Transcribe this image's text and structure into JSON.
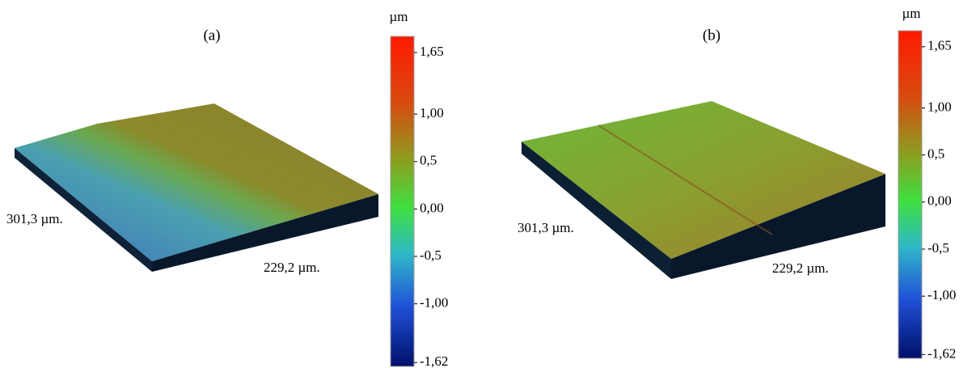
{
  "panels": [
    {
      "label": "(a)",
      "unit": "µm",
      "length_label": "301,3 µm.",
      "width_label": "229,2 µm.",
      "colorbar": {
        "range": [
          -1.66,
          1.82
        ],
        "ticks": [
          {
            "value": 1.65,
            "label": "1,65"
          },
          {
            "value": 1.0,
            "label": "1,00"
          },
          {
            "value": 0.5,
            "label": "0,5"
          },
          {
            "value": 0.0,
            "label": "0,00"
          },
          {
            "value": -0.5,
            "label": "-0,5"
          },
          {
            "value": -1.0,
            "label": "-1,00"
          },
          {
            "value": -1.62,
            "label": "-1,62"
          }
        ]
      }
    },
    {
      "label": "(b)",
      "unit": "µm",
      "length_label": "301,3 µm.",
      "width_label": "229,2 µm.",
      "colorbar": {
        "range": [
          -1.66,
          1.82
        ],
        "ticks": [
          {
            "value": 1.65,
            "label": "1,65"
          },
          {
            "value": 1.0,
            "label": "1,00"
          },
          {
            "value": 0.5,
            "label": "0,5"
          },
          {
            "value": 0.0,
            "label": "0,00"
          },
          {
            "value": -0.5,
            "label": "-0,5"
          },
          {
            "value": -1.0,
            "label": "-1,00"
          },
          {
            "value": -1.62,
            "label": "-1,62"
          }
        ]
      }
    }
  ]
}
